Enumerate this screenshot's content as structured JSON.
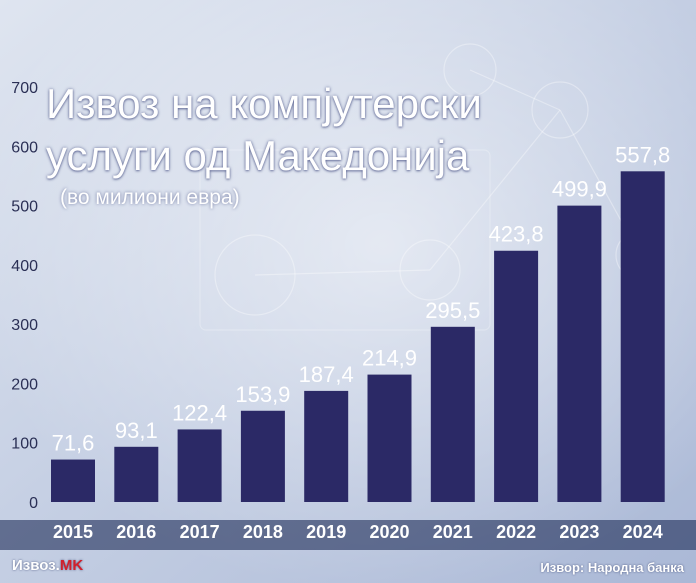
{
  "title_line1": "Извоз на компјутерски",
  "title_line2": "услуги од Македонија",
  "subtitle": "(во милиони евра)",
  "brand": {
    "prefix": "Извоз.",
    "suffix": "MK"
  },
  "source": "Извор: Народна банка",
  "colors": {
    "bar": "#2b2966",
    "background": "#c9d3e6",
    "accent": "#d21f2a"
  },
  "chart_data": {
    "type": "bar",
    "categories": [
      "2015",
      "2016",
      "2017",
      "2018",
      "2019",
      "2020",
      "2021",
      "2022",
      "2023",
      "2024"
    ],
    "values": [
      71.6,
      93.1,
      122.4,
      153.9,
      187.4,
      214.9,
      295.5,
      423.8,
      499.9,
      557.8
    ],
    "value_labels": [
      "71,6",
      "93,1",
      "122,4",
      "153,9",
      "187,4",
      "214,9",
      "295,5",
      "423,8",
      "499,9",
      "557,8"
    ],
    "yticks": [
      0,
      100,
      200,
      300,
      400,
      500,
      600,
      700
    ],
    "ylim": [
      0,
      700
    ],
    "grid": false,
    "legend": "none"
  }
}
